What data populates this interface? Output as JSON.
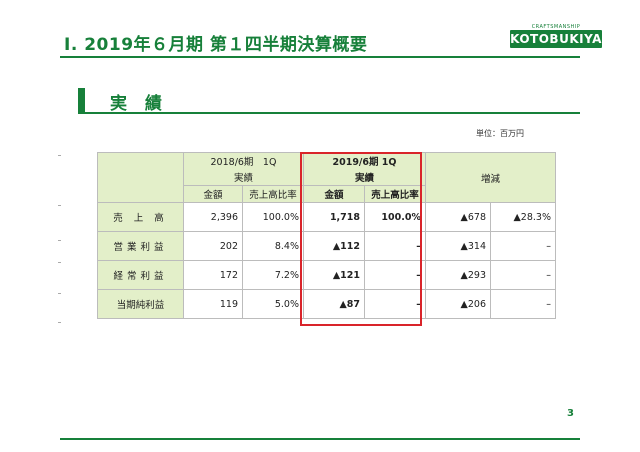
{
  "header": {
    "title": "Ⅰ. 2019年６月期 第１四半期決算概要",
    "logo_top_text": "CRAFTSMANSHIP",
    "logo_text": "KOTOBUKIYA"
  },
  "section": {
    "title": "実 績"
  },
  "unit_label": "単位：百万円",
  "table": {
    "prev_period_label": "2018/6期　1Q",
    "curr_period_label": "2019/6期 1Q",
    "actual_label": "実績",
    "change_label": "増減",
    "amount_label": "金額",
    "ratio_label": "売上高比率",
    "rows": [
      {
        "label": "売 上 高",
        "prev_amount": "2,396",
        "prev_ratio": "100.0%",
        "curr_amount": "1,718",
        "curr_ratio": "100.0%",
        "change_amount": "▲678",
        "change_pct": "▲28.3%"
      },
      {
        "label": "営業利益",
        "prev_amount": "202",
        "prev_ratio": "8.4%",
        "curr_amount": "▲112",
        "curr_ratio": "–",
        "change_amount": "▲314",
        "change_pct": "–"
      },
      {
        "label": "経常利益",
        "prev_amount": "172",
        "prev_ratio": "7.2%",
        "curr_amount": "▲121",
        "curr_ratio": "–",
        "change_amount": "▲293",
        "change_pct": "–"
      },
      {
        "label": "当期純利益",
        "prev_amount": "119",
        "prev_ratio": "5.0%",
        "curr_amount": "▲87",
        "curr_ratio": "–",
        "change_amount": "▲206",
        "change_pct": "–"
      }
    ]
  },
  "page_number": "3",
  "colors": {
    "brand_green": "#17803a",
    "header_fill": "#e3efc9",
    "highlight_red": "#d9242a"
  }
}
